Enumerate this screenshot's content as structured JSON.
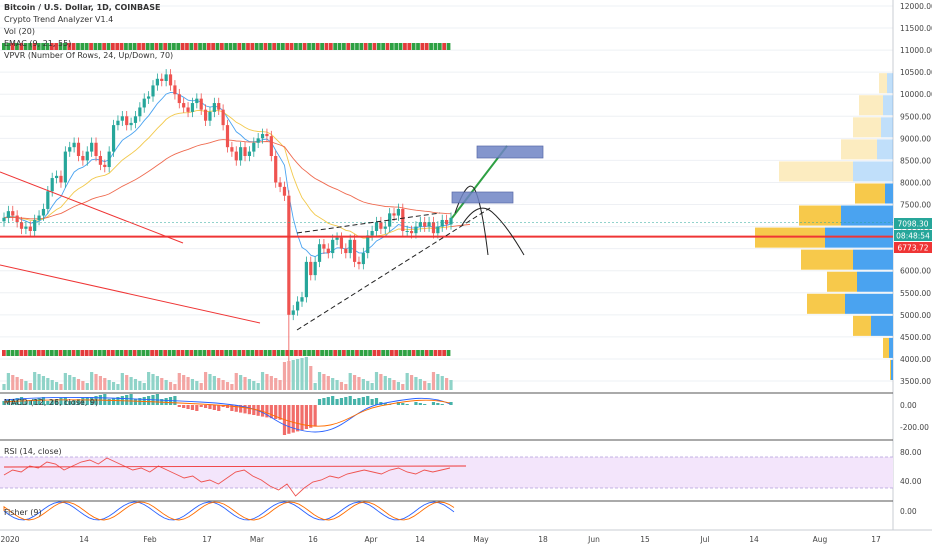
{
  "legend": {
    "title": "Bitcoin / U.S. Dollar, 1D, COINBASE",
    "indicator_1": "Crypto Trend Analyzer V1.4",
    "indicator_2": "Vol (20)",
    "indicator_3": "EMAC (9, 21, 55)",
    "indicator_4": "VPVR (Number Of Rows, 24, Up/Down, 70)"
  },
  "panes": {
    "macd_label": "MACD (12, 26, close, 9)",
    "rsi_label": "RSI (14, close)",
    "fisher_label": "Fisher (9)"
  },
  "badges": {
    "price": "7098.30",
    "countdown": "08:48:54",
    "level": "6773.72"
  },
  "colors": {
    "up": "#26a69a",
    "down": "#ef5350",
    "green_signal": "#2ea043",
    "red_signal": "#e23b3b",
    "vp_up": "#4aa3f0",
    "vp_down": "#f7c94b",
    "box": "#6f84c5",
    "rsi_band": "#f3e5fb"
  },
  "chart_data": [
    {
      "type": "candlestick",
      "title": "Bitcoin / U.S. Dollar, 1D, COINBASE",
      "price_axis": {
        "ticks": [
          "12000.00",
          "11500.00",
          "11000.00",
          "10500.00",
          "10000.00",
          "9500.00",
          "9000.00",
          "8500.00",
          "8000.00",
          "7500.00",
          "7000.00",
          "6500.00",
          "6000.00",
          "5500.00",
          "5000.00",
          "4500.00",
          "4000.00",
          "3500.00"
        ],
        "ylim": [
          3300,
          12150
        ]
      },
      "time_axis": {
        "labels": [
          "2020",
          "14",
          "Feb",
          "17",
          "Mar",
          "16",
          "Apr",
          "14",
          "May",
          "18",
          "Jun",
          "15",
          "Jul",
          "14",
          "Aug",
          "17"
        ]
      },
      "series": [
        {
          "name": "BTCUSD",
          "close_path": [
            7200,
            7350,
            7250,
            7100,
            6950,
            7000,
            6900,
            7150,
            7250,
            7400,
            7800,
            8100,
            8150,
            8000,
            8700,
            8800,
            8900,
            8600,
            8500,
            8700,
            8900,
            8600,
            8400,
            8350,
            8700,
            9300,
            9400,
            9500,
            9300,
            9350,
            9500,
            9700,
            9900,
            9950,
            10200,
            10350,
            10300,
            10450,
            10200,
            10000,
            9800,
            9700,
            9600,
            9800,
            9900,
            9650,
            9400,
            9600,
            9800,
            9650,
            9300,
            8800,
            8700,
            8500,
            8800,
            8600,
            8700,
            8900,
            9000,
            9100,
            9050,
            8600,
            8000,
            7900,
            7700,
            5000,
            5100,
            5300,
            5400,
            6200,
            5900,
            6200,
            6600,
            6500,
            6400,
            6700,
            6750,
            6500,
            6400,
            6700,
            6200,
            6150,
            6400,
            6800,
            6900,
            7100,
            6950,
            7000,
            7300,
            7250,
            7400,
            6900,
            6900,
            6850,
            7000,
            7100,
            7000,
            7100,
            6850,
            7000,
            7150,
            7050,
            7200
          ]
        }
      ],
      "levels": {
        "last_price": 7098.3,
        "horizontal_line": 6773.72
      },
      "annotations": [
        "rising wedge",
        "projection arrows",
        "target boxes"
      ]
    },
    {
      "type": "volume-profile",
      "title": "VPVR (Number Of Rows, 24, Up/Down, 70)",
      "rows": [
        {
          "price": 10250,
          "up": 6,
          "down": 8
        },
        {
          "price": 9750,
          "up": 10,
          "down": 24
        },
        {
          "price": 9250,
          "up": 12,
          "down": 28
        },
        {
          "price": 8750,
          "up": 16,
          "down": 36
        },
        {
          "price": 8250,
          "up": 40,
          "down": 74
        },
        {
          "price": 7750,
          "up": 8,
          "down": 30
        },
        {
          "price": 7250,
          "up": 52,
          "down": 42
        },
        {
          "price": 6750,
          "up": 68,
          "down": 70
        },
        {
          "price": 6250,
          "up": 40,
          "down": 52
        },
        {
          "price": 5750,
          "up": 36,
          "down": 30
        },
        {
          "price": 5250,
          "up": 48,
          "down": 38
        },
        {
          "price": 4750,
          "up": 22,
          "down": 18
        },
        {
          "price": 4250,
          "up": 4,
          "down": 6
        },
        {
          "price": 3750,
          "up": 2,
          "down": 1
        }
      ]
    },
    {
      "type": "bar",
      "title": "MACD (12, 26, close, 9)",
      "axis_ticks": [
        "0.00",
        "-200.00"
      ]
    },
    {
      "type": "line",
      "title": "RSI (14, close)",
      "axis_ticks": [
        "80.00",
        "40.00"
      ]
    },
    {
      "type": "line",
      "title": "Fisher (9)",
      "axis_ticks": [
        "0.00"
      ]
    }
  ]
}
